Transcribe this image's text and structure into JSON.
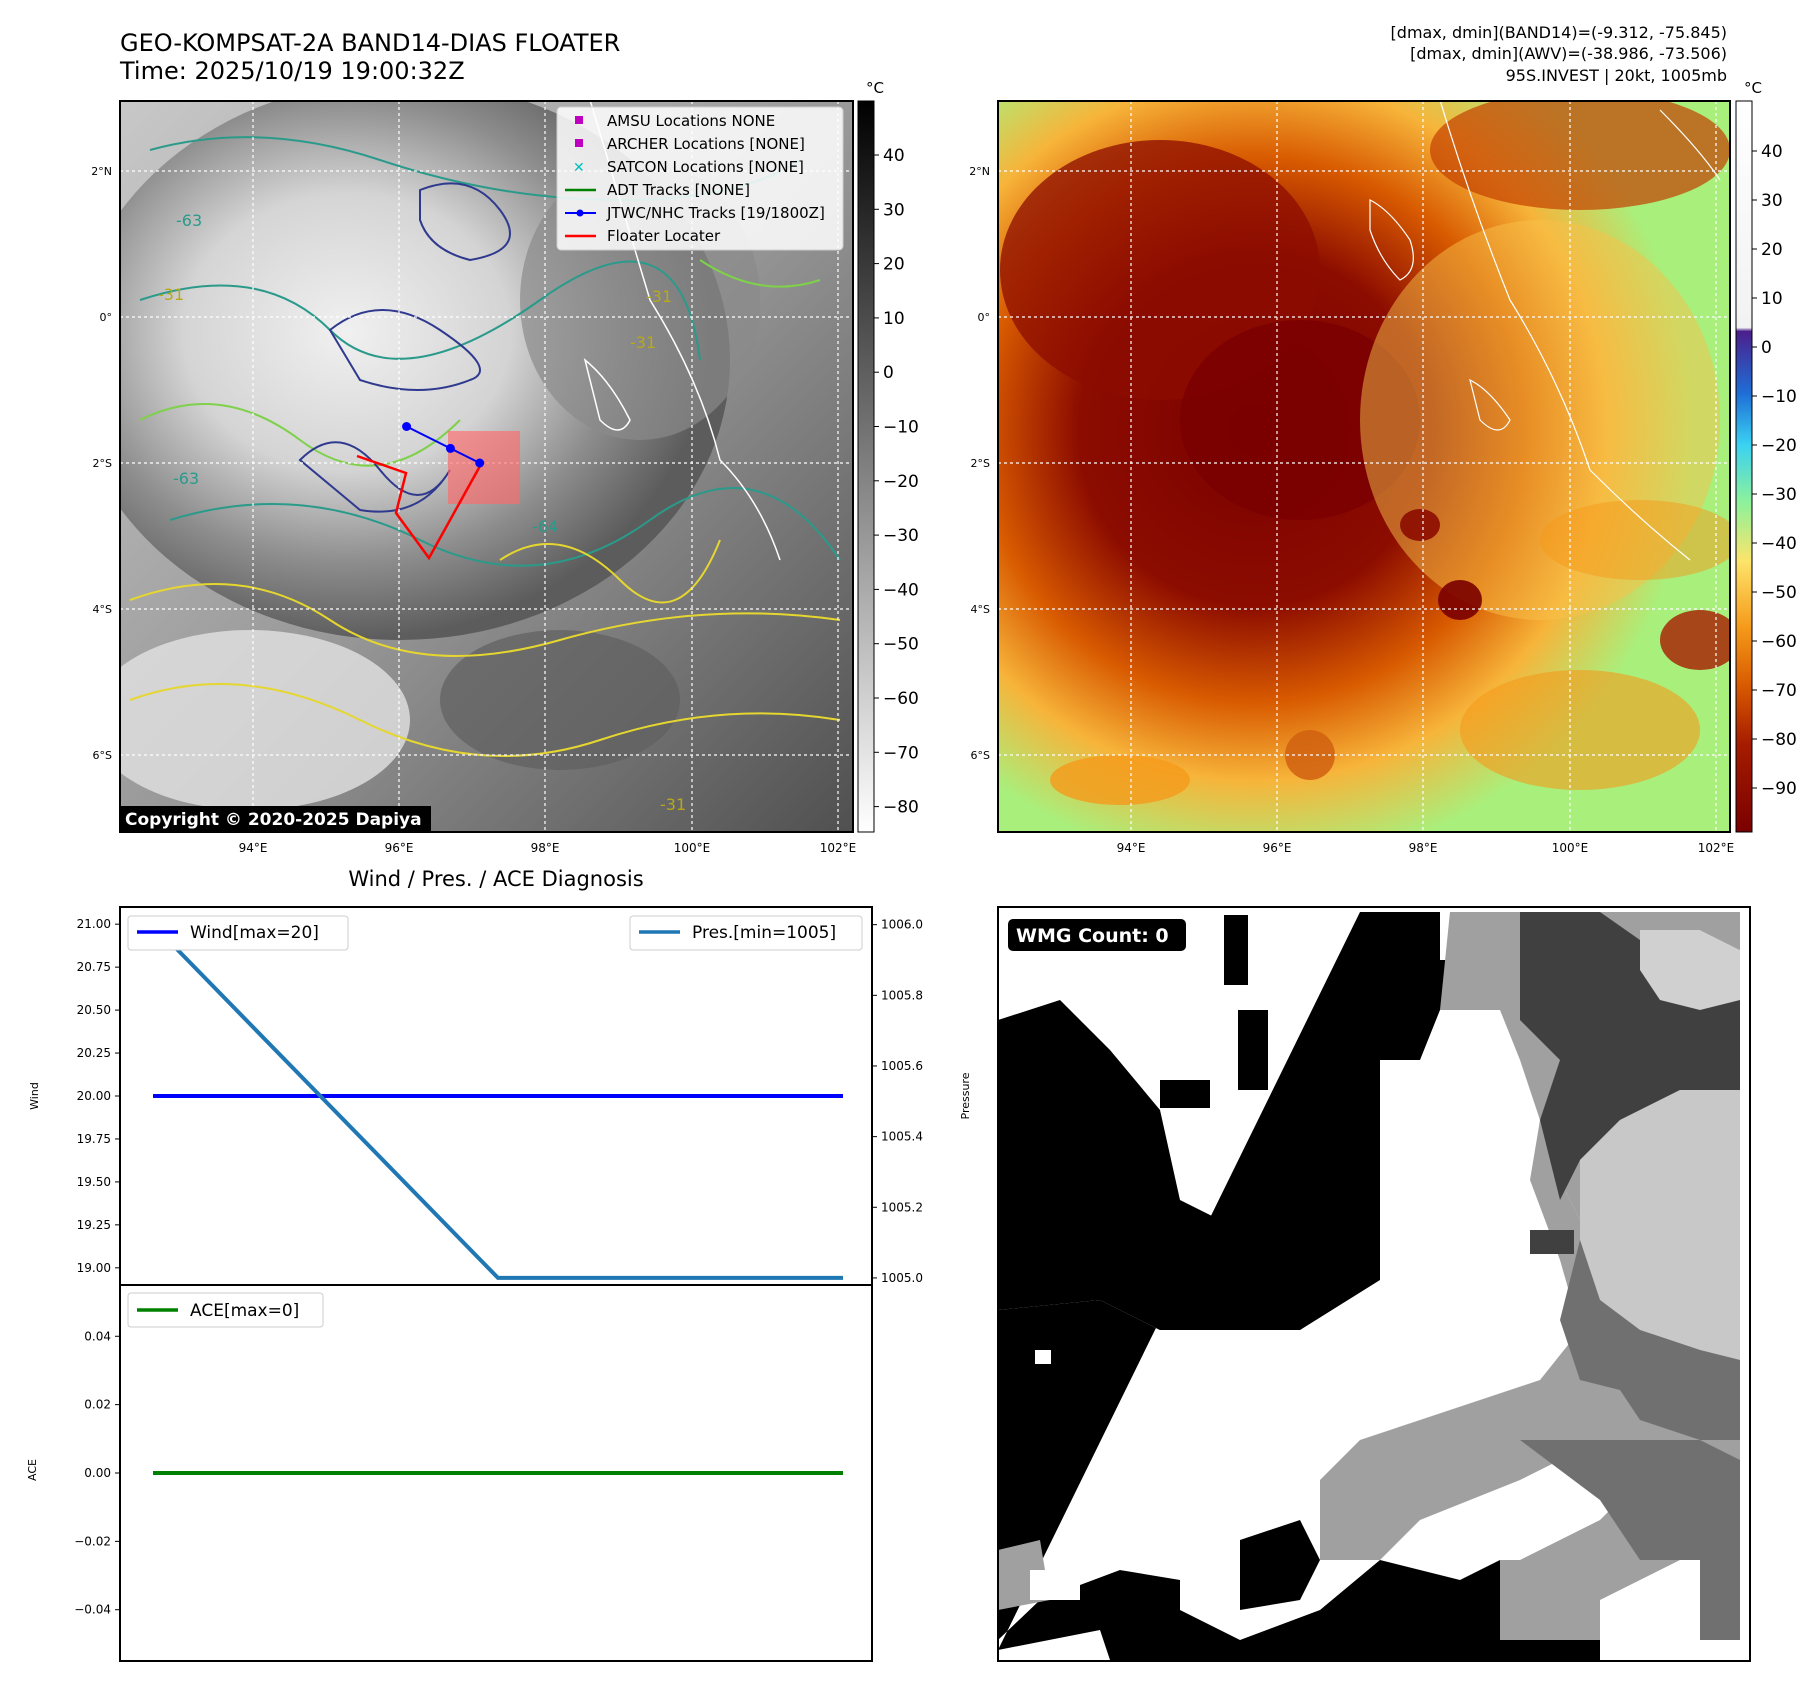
{
  "header": {
    "title_line1": "GEO-KOMPSAT-2A BAND14-DIAS FLOATER",
    "title_line2": "Time: 2025/10/19 19:00:32Z",
    "info_line1": "[dmax, dmin](BAND14)=(-9.312, -75.845)",
    "info_line2": "[dmax, dmin](AWV)=(-38.986, -73.506)",
    "info_line3": "95S.INVEST | 20kt, 1005mb"
  },
  "map": {
    "lon_labels": [
      "94°E",
      "96°E",
      "98°E",
      "100°E",
      "102°E"
    ],
    "lat_labels": [
      "2°N",
      "0°",
      "2°S",
      "4°S",
      "6°S"
    ],
    "copyright": "Copyright © 2020-2025 Dapiya",
    "legend": [
      {
        "label": "AMSU Locations NONE",
        "marker": "square",
        "color": "#bf00bf"
      },
      {
        "label": "ARCHER Locations [NONE]",
        "marker": "square",
        "color": "#bf00bf"
      },
      {
        "label": "SATCON Locations [NONE]",
        "marker": "x",
        "color": "#00bfbf"
      },
      {
        "label": "ADT Tracks [NONE]",
        "marker": "line",
        "color": "#008000"
      },
      {
        "label": "JTWC/NHC Tracks [19/1800Z]",
        "marker": "line-dot",
        "color": "#0000ff"
      },
      {
        "label": "Floater Locater",
        "marker": "line",
        "color": "#ff0000"
      }
    ],
    "contour_labels": [
      "-63",
      "-31",
      "-31",
      "-31",
      "-63",
      "-64",
      "-31"
    ]
  },
  "colorbar_left": {
    "unit": "°C",
    "ticks": [
      "40",
      "30",
      "20",
      "10",
      "0",
      "−10",
      "−20",
      "−30",
      "−40",
      "−50",
      "−60",
      "−70",
      "−80"
    ]
  },
  "colorbar_right": {
    "unit": "°C",
    "ticks": [
      "40",
      "30",
      "20",
      "10",
      "0",
      "−10",
      "−20",
      "−30",
      "−40",
      "−50",
      "−60",
      "−70",
      "−80",
      "−90"
    ]
  },
  "diagnosis": {
    "title": "Wind / Pres. / ACE Diagnosis",
    "wind_ylabel": "Wind",
    "pressure_ylabel": "Pressure",
    "ace_ylabel": "ACE",
    "wind_legend": "Wind[max=20]",
    "pres_legend": "Pres.[min=1005]",
    "ace_legend": "ACE[max=0]",
    "wind_ticks": [
      "21.00",
      "20.75",
      "20.50",
      "20.25",
      "20.00",
      "19.75",
      "19.50",
      "19.25",
      "19.00"
    ],
    "pres_ticks": [
      "1006.0",
      "1005.8",
      "1005.6",
      "1005.4",
      "1005.2",
      "1005.0"
    ],
    "ace_ticks": [
      "0.04",
      "0.02",
      "0.00",
      "−0.02",
      "−0.04"
    ]
  },
  "wmg": {
    "label": "WMG Count: 0"
  },
  "chart_data": [
    {
      "type": "line",
      "title": "Wind / Pres. / ACE Diagnosis",
      "ylabel": "Wind",
      "ylim": [
        18.9,
        21.1
      ],
      "series": [
        {
          "name": "Wind[max=20]",
          "x": [
            0,
            1,
            2
          ],
          "values": [
            20,
            20,
            20
          ],
          "color": "#0000ff"
        }
      ]
    },
    {
      "type": "line",
      "ylabel": "Pressure",
      "ylim": [
        1004.98,
        1006.05
      ],
      "series": [
        {
          "name": "Pres.[min=1005]",
          "x": [
            0,
            1,
            2
          ],
          "values": [
            1006,
            1005,
            1005
          ],
          "color": "#1f77b4"
        }
      ]
    },
    {
      "type": "line",
      "ylabel": "ACE",
      "ylim": [
        -0.055,
        0.055
      ],
      "series": [
        {
          "name": "ACE[max=0]",
          "x": [
            0,
            1,
            2
          ],
          "values": [
            0,
            0,
            0
          ],
          "color": "#008000"
        }
      ]
    },
    {
      "type": "line",
      "title": "JTWC/NHC Tracks [19/1800Z]",
      "series": [
        {
          "name": "JTWC/NHC Tracks [19/1800Z]",
          "x": [
            96.1,
            96.7,
            97.1
          ],
          "values": [
            -1.5,
            -1.8,
            -2.0
          ],
          "color": "#0000ff"
        }
      ]
    }
  ]
}
